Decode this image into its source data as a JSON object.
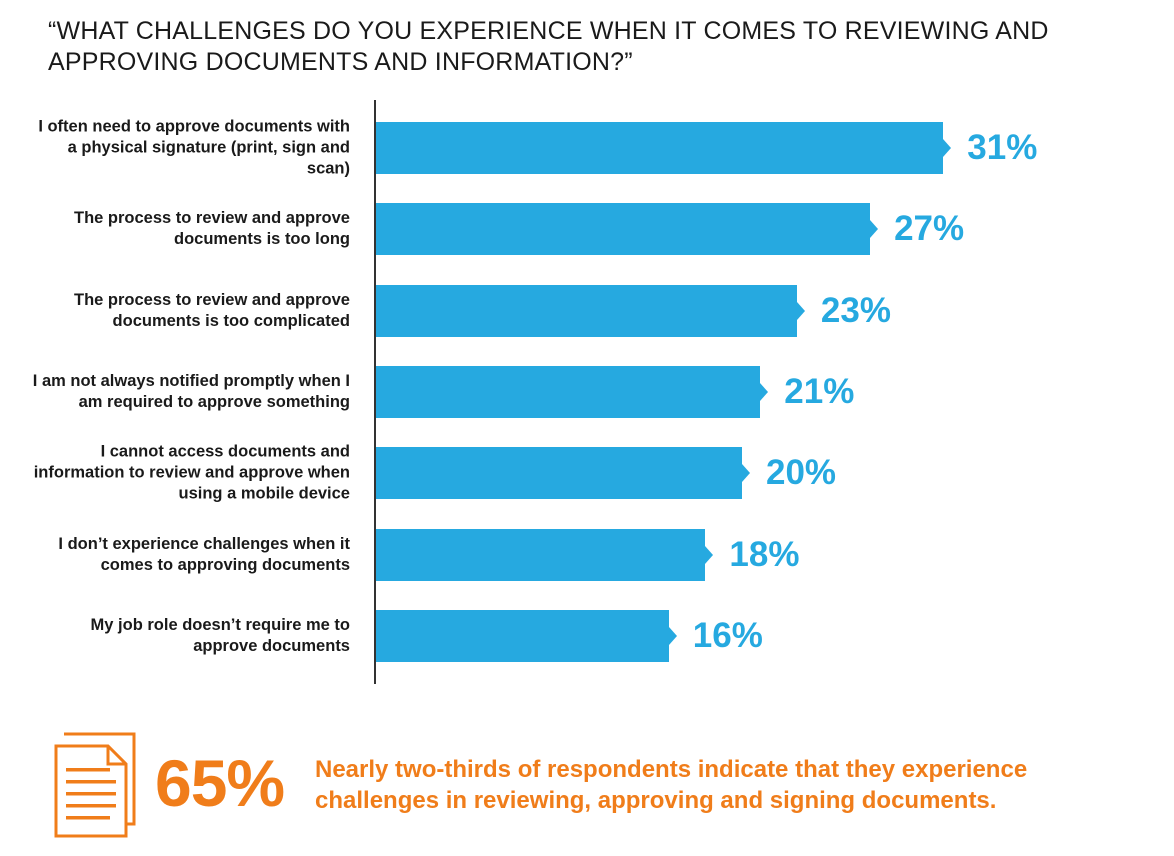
{
  "title": "“WHAT CHALLENGES DO YOU EXPERIENCE WHEN IT COMES TO REVIEWING AND APPROVING DOCUMENTS AND INFORMATION?”",
  "colors": {
    "bar": "#26a9e0",
    "value": "#26a9e0",
    "accent": "#f07d1a",
    "text": "#1a1a1a"
  },
  "chart_data": {
    "type": "bar",
    "orientation": "horizontal",
    "title": "“WHAT CHALLENGES DO YOU EXPERIENCE WHEN IT COMES TO REVIEWING AND APPROVING DOCUMENTS AND INFORMATION?”",
    "categories": [
      "I often need to approve documents with a physical signature (print, sign and scan)",
      "The process to review and approve documents is too long",
      "The process to review and approve documents is too complicated",
      "I am not always notified promptly when I am required to approve something",
      "I cannot access documents and information to review and approve when using a mobile device",
      "I don’t experience challenges when it comes to approving documents",
      "My job role doesn’t require me to approve documents"
    ],
    "values": [
      31,
      27,
      23,
      21,
      20,
      18,
      16
    ],
    "value_labels": [
      "31%",
      "27%",
      "23%",
      "21%",
      "20%",
      "18%",
      "16%"
    ],
    "unit": "%",
    "xlim": [
      0,
      45
    ],
    "grid": false,
    "legend": "none"
  },
  "callout": {
    "stat": "65%",
    "text": "Nearly two-thirds of respondents indicate that they experience challenges in reviewing, approving and signing documents.",
    "icon": "document-icon"
  }
}
